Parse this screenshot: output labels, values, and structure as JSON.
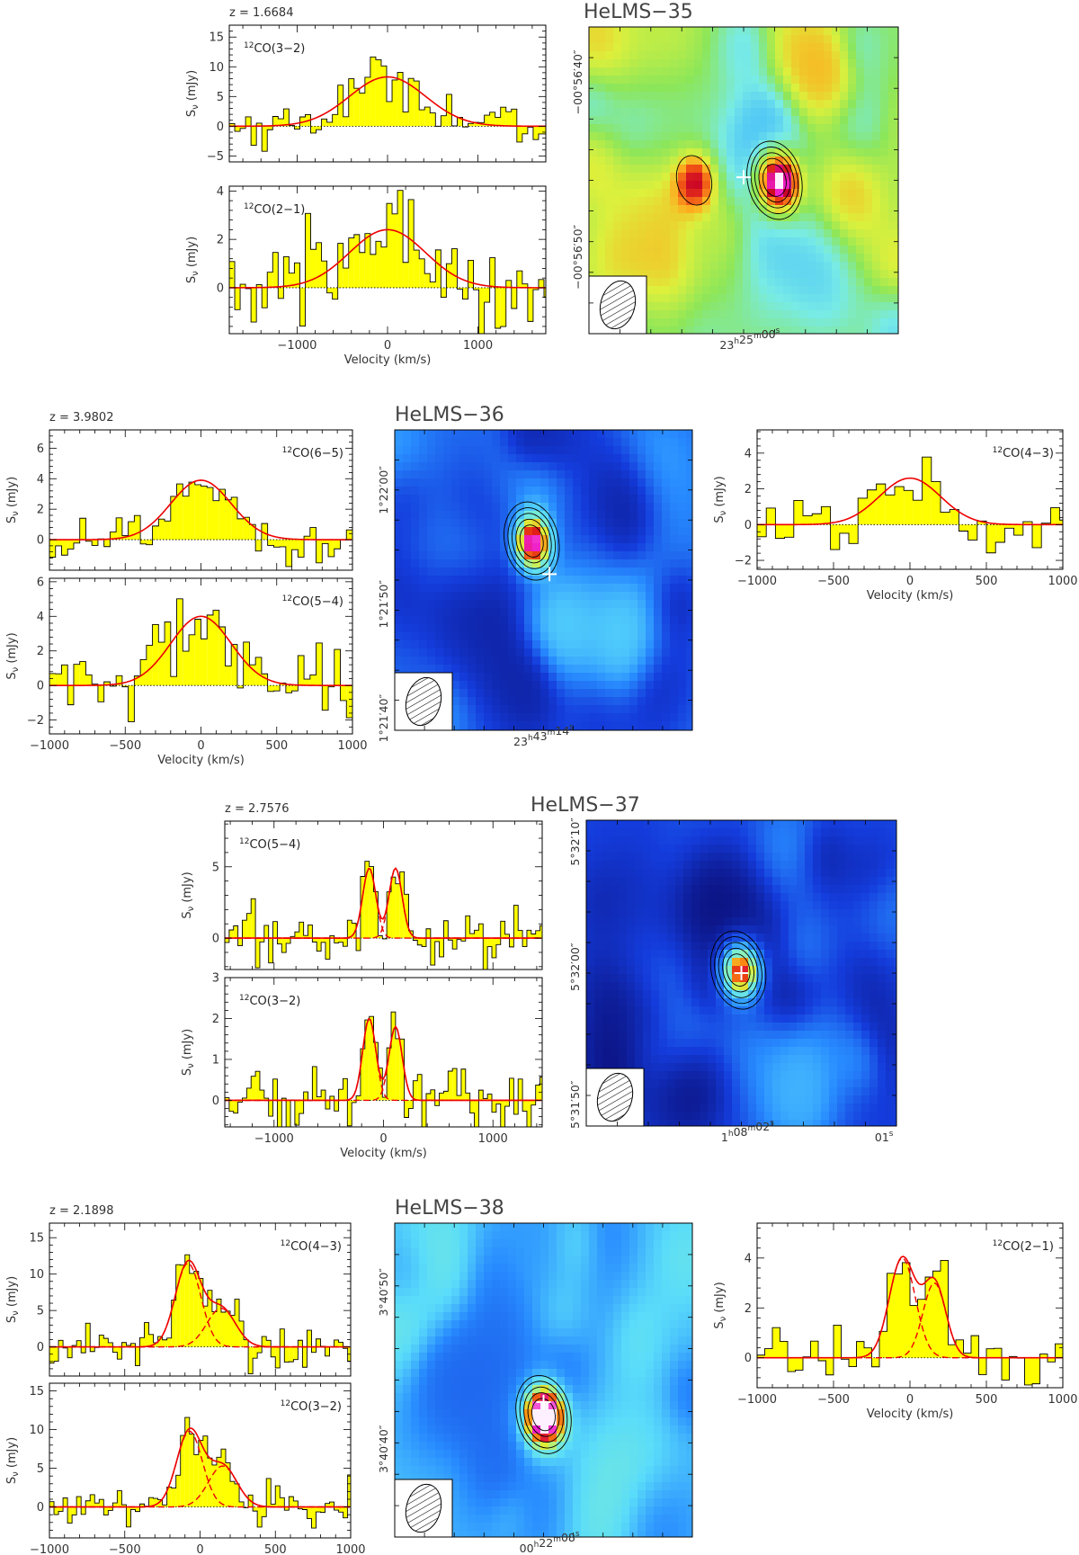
{
  "chart_data": [
    {
      "type": "bar",
      "source": "HeLMS-35",
      "z_label": "z = 1.6684",
      "line": "12CO(3-2)",
      "line_label": {
        "iso": "12",
        "text": "CO(3−2)"
      },
      "xlim": [
        -1750,
        1750
      ],
      "ylim": [
        -6,
        17
      ],
      "yticks": [
        -5,
        0,
        5,
        10,
        15
      ],
      "xticks": [
        -1000,
        0,
        1000
      ],
      "show_xtick_labels": false,
      "xlabel": "",
      "ylabel": "Sν (mJy)",
      "fit": {
        "components": [
          {
            "amp": 8.3,
            "center": 0,
            "sigma": 420
          }
        ],
        "show_components": false
      },
      "step_width": 60
    },
    {
      "type": "bar",
      "source": "HeLMS-35",
      "z_label": "",
      "line": "12CO(2-1)",
      "line_label": {
        "iso": "12",
        "text": "CO(2−1)"
      },
      "xlim": [
        -1750,
        1750
      ],
      "ylim": [
        -1.9,
        4.2
      ],
      "yticks": [
        0,
        2,
        4
      ],
      "xticks": [
        -1000,
        0,
        1000
      ],
      "show_xtick_labels": true,
      "xlabel": "Velocity (km/s)",
      "ylabel": "Sν (mJy)",
      "fit": {
        "components": [
          {
            "amp": 2.4,
            "center": 0,
            "sigma": 420
          }
        ],
        "show_components": false
      },
      "step_width": 60
    },
    {
      "type": "bar",
      "source": "HeLMS-36",
      "z_label": "z = 3.9802",
      "line": "12CO(6-5)",
      "line_label": {
        "iso": "12",
        "text": "CO(6−5)"
      },
      "xlim": [
        -1000,
        1000
      ],
      "ylim": [
        -2,
        7.2
      ],
      "yticks": [
        0,
        2,
        4,
        6
      ],
      "xticks": [
        -1000,
        -500,
        0,
        500,
        1000
      ],
      "show_xtick_labels": false,
      "xlabel": "",
      "ylabel": "Sν (mJy)",
      "fit": {
        "components": [
          {
            "amp": 3.9,
            "center": 0,
            "sigma": 200
          }
        ],
        "show_components": false
      },
      "step_width": 40
    },
    {
      "type": "bar",
      "source": "HeLMS-36",
      "z_label": "",
      "line": "12CO(5-4)",
      "line_label": {
        "iso": "12",
        "text": "CO(5−4)"
      },
      "xlim": [
        -1000,
        1000
      ],
      "ylim": [
        -2.8,
        6.2
      ],
      "yticks": [
        -2,
        0,
        2,
        4,
        6
      ],
      "xticks": [
        -1000,
        -500,
        0,
        500,
        1000
      ],
      "show_xtick_labels": true,
      "xlabel": "Velocity (km/s)",
      "ylabel": "Sν (mJy)",
      "fit": {
        "components": [
          {
            "amp": 4.0,
            "center": 0,
            "sigma": 200
          }
        ],
        "show_components": false
      },
      "step_width": 40
    },
    {
      "type": "bar",
      "source": "HeLMS-36",
      "z_label": "",
      "line": "12CO(4-3)",
      "line_label": {
        "iso": "12",
        "text": "CO(4−3)"
      },
      "xlim": [
        -1000,
        1000
      ],
      "ylim": [
        -2.5,
        5.3
      ],
      "yticks": [
        -2,
        0,
        2,
        4
      ],
      "xticks": [
        -1000,
        -500,
        0,
        500,
        1000
      ],
      "show_xtick_labels": true,
      "xlabel": "Velocity (km/s)",
      "ylabel": "Sν (mJy)",
      "fit": {
        "components": [
          {
            "amp": 2.6,
            "center": 0,
            "sigma": 200
          }
        ],
        "show_components": false
      },
      "step_width": 60
    },
    {
      "type": "bar",
      "source": "HeLMS-37",
      "z_label": "z = 2.7576",
      "line": "12CO(5-4)",
      "line_label": {
        "iso": "12",
        "text": "CO(5−4)"
      },
      "xlim": [
        -1450,
        1450
      ],
      "ylim": [
        -2.2,
        8.2
      ],
      "yticks": [
        0,
        5
      ],
      "xticks": [
        -1000,
        0,
        1000
      ],
      "show_xtick_labels": false,
      "xlabel": "",
      "ylabel": "Sν (mJy)",
      "fit": {
        "components": [
          {
            "amp": 4.9,
            "center": -130,
            "sigma": 60
          },
          {
            "amp": 4.9,
            "center": 110,
            "sigma": 60
          }
        ],
        "show_components": true
      },
      "step_width": 40
    },
    {
      "type": "bar",
      "source": "HeLMS-37",
      "z_label": "",
      "line": "12CO(3-2)",
      "line_label": {
        "iso": "12",
        "text": "CO(3−2)"
      },
      "xlim": [
        -1450,
        1450
      ],
      "ylim": [
        -0.65,
        3.0
      ],
      "yticks": [
        0,
        1,
        2,
        3
      ],
      "xticks": [
        -1000,
        0,
        1000
      ],
      "show_xtick_labels": true,
      "xlabel": "Velocity (km/s)",
      "ylabel": "Sν (mJy)",
      "fit": {
        "components": [
          {
            "amp": 2.0,
            "center": -130,
            "sigma": 60
          },
          {
            "amp": 1.8,
            "center": 110,
            "sigma": 60
          }
        ],
        "show_components": true
      },
      "step_width": 40
    },
    {
      "type": "bar",
      "source": "HeLMS-38",
      "z_label": "z = 2.1898",
      "line": "12CO(4-3)",
      "line_label": {
        "iso": "12",
        "text": "CO(4−3)"
      },
      "xlim": [
        -1000,
        1000
      ],
      "ylim": [
        -4,
        17
      ],
      "yticks": [
        -5,
        0,
        5,
        10,
        15
      ],
      "xticks": [
        -1000,
        -500,
        0,
        500,
        1000
      ],
      "show_xtick_labels": false,
      "xlabel": "",
      "ylabel": "Sν (mJy)",
      "fit": {
        "components": [
          {
            "amp": 11.5,
            "center": -80,
            "sigma": 85
          },
          {
            "amp": 5.3,
            "center": 140,
            "sigma": 95
          }
        ],
        "show_components": true
      },
      "step_width": 30
    },
    {
      "type": "bar",
      "source": "HeLMS-38",
      "z_label": "",
      "line": "12CO(3-2)",
      "line_label": {
        "iso": "12",
        "text": "CO(3−2)"
      },
      "xlim": [
        -1000,
        1000
      ],
      "ylim": [
        -4,
        16
      ],
      "yticks": [
        0,
        5,
        10,
        15
      ],
      "xticks": [
        -1000,
        -500,
        0,
        500,
        1000
      ],
      "show_xtick_labels": true,
      "xlabel": "Velocity (km/s)",
      "ylabel": "Sν (mJy)",
      "fit": {
        "components": [
          {
            "amp": 9.8,
            "center": -70,
            "sigma": 85
          },
          {
            "amp": 5.3,
            "center": 150,
            "sigma": 95
          }
        ],
        "show_components": true
      },
      "step_width": 30
    },
    {
      "type": "bar",
      "source": "HeLMS-38",
      "z_label": "",
      "line": "12CO(2-1)",
      "line_label": {
        "iso": "12",
        "text": "CO(2−1)"
      },
      "xlim": [
        -1000,
        1000
      ],
      "ylim": [
        -1.2,
        5.4
      ],
      "yticks": [
        0,
        2,
        4
      ],
      "xticks": [
        -1000,
        -500,
        0,
        500,
        1000
      ],
      "show_xtick_labels": true,
      "xlabel": "Velocity (km/s)",
      "ylabel": "Sν (mJy)",
      "fit": {
        "components": [
          {
            "amp": 4.0,
            "center": -50,
            "sigma": 85
          },
          {
            "amp": 3.0,
            "center": 160,
            "sigma": 75
          }
        ],
        "show_components": true
      },
      "step_width": 50
    },
    {
      "type": "heatmap",
      "source": "HeLMS-35",
      "title": "HeLMS−35",
      "ra_labels": [
        {
          "h": "23",
          "m": "25",
          "s": "00"
        }
      ],
      "dec_labels": [
        "−00°56′40″",
        "−00°56′50″"
      ],
      "colormap": "green-yellow background",
      "sources": [
        {
          "u": 0.6,
          "v": 0.5,
          "peak": 1.0
        },
        {
          "u": 0.34,
          "v": 0.5,
          "peak": 0.55
        }
      ],
      "cross": {
        "u": 0.5,
        "v": 0.49
      }
    },
    {
      "type": "heatmap",
      "source": "HeLMS-36",
      "title": "HeLMS−36",
      "ra_labels": [
        {
          "h": "23",
          "m": "43",
          "s": "14"
        }
      ],
      "dec_labels": [
        "1°22′00″",
        "1°21′50″",
        "1°21′40″"
      ],
      "colormap": "blue background",
      "sources": [
        {
          "u": 0.46,
          "v": 0.37,
          "peak": 1.0
        }
      ],
      "cross": {
        "u": 0.52,
        "v": 0.48
      }
    },
    {
      "type": "heatmap",
      "source": "HeLMS-37",
      "title": "HeLMS−37",
      "ra_labels": [
        {
          "h": "1",
          "m": "08",
          "s": "02"
        },
        {
          "h": "",
          "m": "",
          "s": "01"
        }
      ],
      "dec_labels": [
        "5°32′10″",
        "5°32′00″",
        "5°31′50″"
      ],
      "colormap": "blue background",
      "sources": [
        {
          "u": 0.49,
          "v": 0.49,
          "peak": 1.0
        }
      ],
      "cross": {
        "u": 0.5,
        "v": 0.5
      }
    },
    {
      "type": "heatmap",
      "source": "HeLMS-38",
      "title": "HeLMS−38",
      "ra_labels": [
        {
          "h": "00",
          "m": "22",
          "s": "08"
        }
      ],
      "dec_labels": [
        "3°40′50″",
        "3°40′40″"
      ],
      "colormap": "cyan background",
      "sources": [
        {
          "u": 0.5,
          "v": 0.61,
          "peak": 1.0
        }
      ],
      "cross": {
        "u": 0.5,
        "v": 0.57
      }
    }
  ],
  "colors": {
    "fill": "#ffff00",
    "fit": "#ee0000",
    "frame": "#000000"
  }
}
